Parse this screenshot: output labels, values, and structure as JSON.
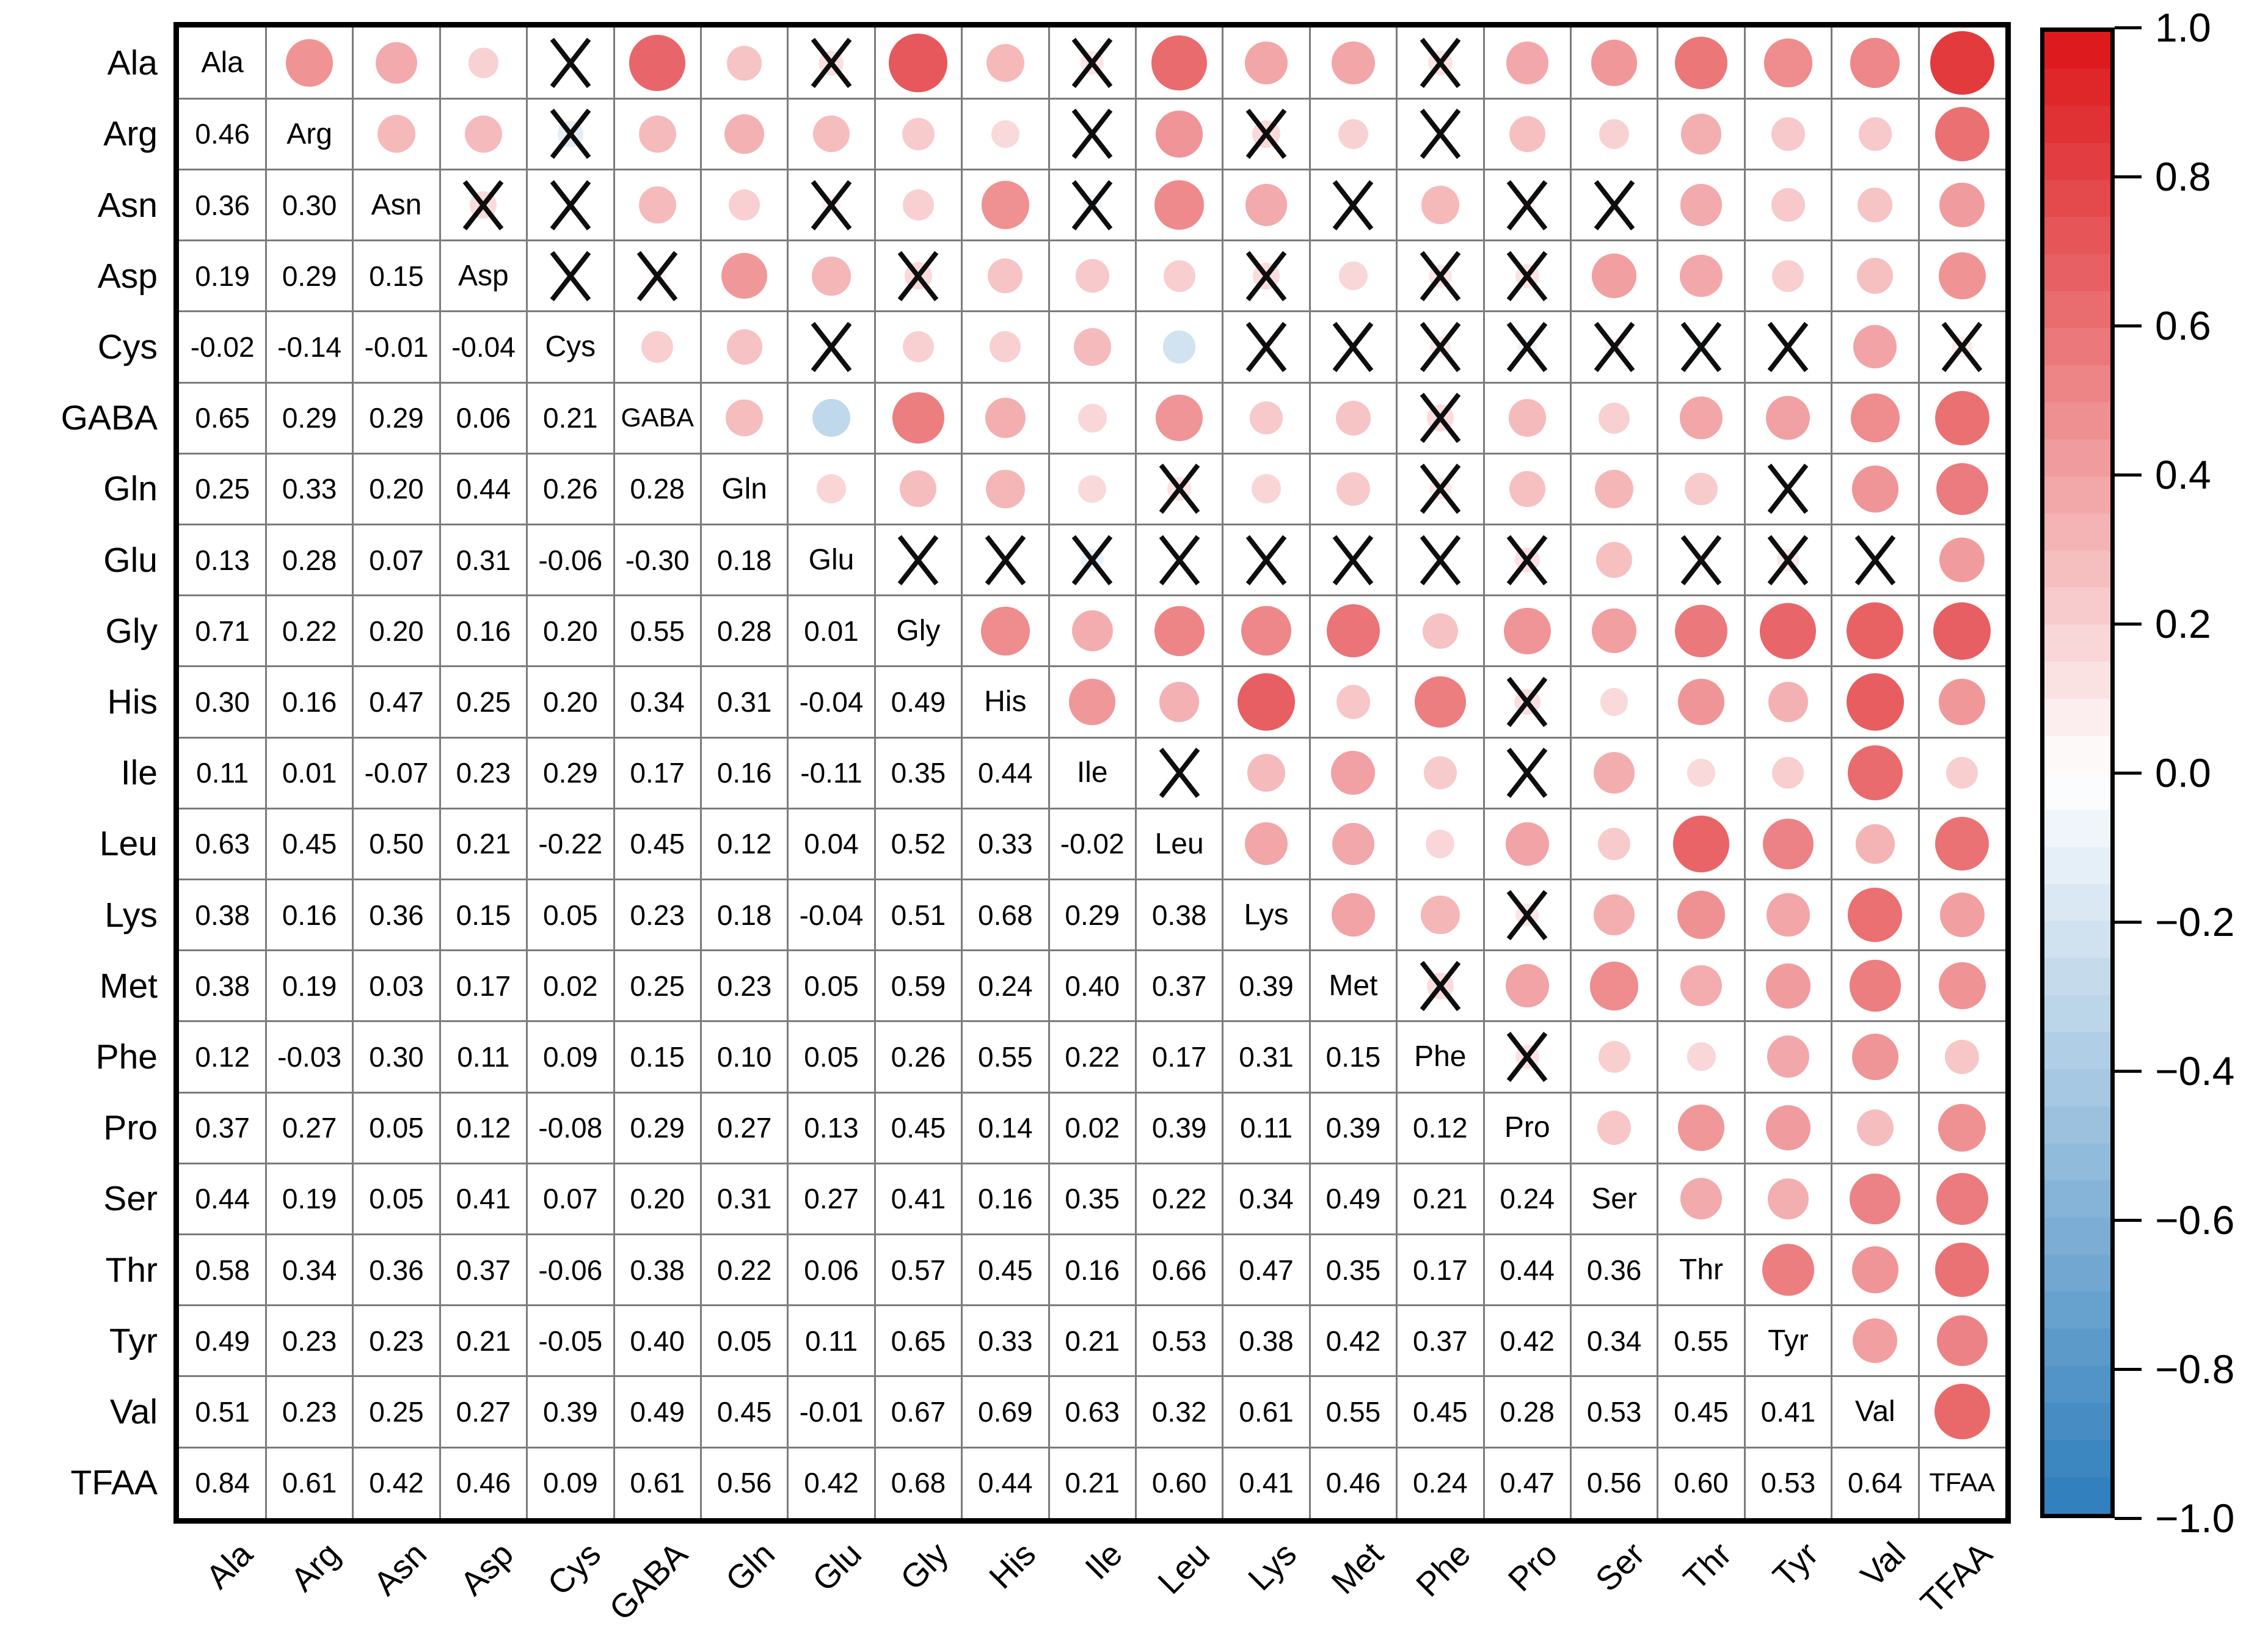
{
  "figure": {
    "background": "#ffffff"
  },
  "chart_data": {
    "type": "heatmap",
    "subtype": "correlation-matrix-corrplot",
    "title": "",
    "description": "21x21 amino-acid correlation matrix: lower triangle shows coefficients, diagonal shows variable names, upper triangle shows circles sized and colored by correlation, X marks flag non-significant correlations",
    "labels": [
      "Ala",
      "Arg",
      "Asn",
      "Asp",
      "Cys",
      "GABA",
      "Gln",
      "Glu",
      "Gly",
      "His",
      "Ile",
      "Leu",
      "Lys",
      "Met",
      "Phe",
      "Pro",
      "Ser",
      "Thr",
      "Tyr",
      "Val",
      "TFAA"
    ],
    "matrix_lower": [
      [],
      [
        0.46
      ],
      [
        0.36,
        0.3
      ],
      [
        0.19,
        0.29,
        0.15
      ],
      [
        -0.02,
        -0.14,
        -0.01,
        -0.04
      ],
      [
        0.65,
        0.29,
        0.29,
        0.06,
        0.21
      ],
      [
        0.25,
        0.33,
        0.2,
        0.44,
        0.26,
        0.28
      ],
      [
        0.13,
        0.28,
        0.07,
        0.31,
        -0.06,
        -0.3,
        0.18
      ],
      [
        0.71,
        0.22,
        0.2,
        0.16,
        0.2,
        0.55,
        0.28,
        0.01
      ],
      [
        0.3,
        0.16,
        0.47,
        0.25,
        0.2,
        0.34,
        0.31,
        -0.04,
        0.49
      ],
      [
        0.11,
        0.01,
        -0.07,
        0.23,
        0.29,
        0.17,
        0.16,
        -0.11,
        0.35,
        0.44
      ],
      [
        0.63,
        0.45,
        0.5,
        0.21,
        -0.22,
        0.45,
        0.12,
        0.04,
        0.52,
        0.33,
        -0.02
      ],
      [
        0.38,
        0.16,
        0.36,
        0.15,
        0.05,
        0.23,
        0.18,
        -0.04,
        0.51,
        0.68,
        0.29,
        0.38
      ],
      [
        0.38,
        0.19,
        0.03,
        0.17,
        0.02,
        0.25,
        0.23,
        0.05,
        0.59,
        0.24,
        0.4,
        0.37,
        0.39
      ],
      [
        0.12,
        -0.03,
        0.3,
        0.11,
        0.09,
        0.15,
        0.1,
        0.05,
        0.26,
        0.55,
        0.22,
        0.17,
        0.31,
        0.15
      ],
      [
        0.37,
        0.27,
        0.05,
        0.12,
        -0.08,
        0.29,
        0.27,
        0.13,
        0.45,
        0.14,
        0.02,
        0.39,
        0.11,
        0.39,
        0.12
      ],
      [
        0.44,
        0.19,
        0.05,
        0.41,
        0.07,
        0.2,
        0.31,
        0.27,
        0.41,
        0.16,
        0.35,
        0.22,
        0.34,
        0.49,
        0.21,
        0.24
      ],
      [
        0.58,
        0.34,
        0.36,
        0.37,
        -0.06,
        0.38,
        0.22,
        0.06,
        0.57,
        0.45,
        0.16,
        0.66,
        0.47,
        0.35,
        0.17,
        0.44,
        0.36
      ],
      [
        0.49,
        0.23,
        0.23,
        0.21,
        -0.05,
        0.4,
        0.05,
        0.11,
        0.65,
        0.33,
        0.21,
        0.53,
        0.38,
        0.42,
        0.37,
        0.42,
        0.34,
        0.55
      ],
      [
        0.51,
        0.23,
        0.25,
        0.27,
        0.39,
        0.49,
        0.45,
        -0.01,
        0.67,
        0.69,
        0.63,
        0.32,
        0.61,
        0.55,
        0.45,
        0.28,
        0.53,
        0.45,
        0.41
      ],
      [
        0.84,
        0.61,
        0.42,
        0.46,
        0.09,
        0.61,
        0.56,
        0.42,
        0.68,
        0.44,
        0.21,
        0.6,
        0.41,
        0.46,
        0.24,
        0.47,
        0.56,
        0.6,
        0.53,
        0.64
      ]
    ],
    "nonsignificant_pairs": [
      [
        "Ala",
        "Cys"
      ],
      [
        "Ala",
        "Glu"
      ],
      [
        "Ala",
        "Ile"
      ],
      [
        "Ala",
        "Phe"
      ],
      [
        "Arg",
        "Cys"
      ],
      [
        "Arg",
        "Ile"
      ],
      [
        "Arg",
        "Lys"
      ],
      [
        "Arg",
        "Phe"
      ],
      [
        "Asn",
        "Asp"
      ],
      [
        "Asn",
        "Cys"
      ],
      [
        "Asn",
        "Glu"
      ],
      [
        "Asn",
        "Ile"
      ],
      [
        "Asn",
        "Met"
      ],
      [
        "Asn",
        "Pro"
      ],
      [
        "Asn",
        "Ser"
      ],
      [
        "Asp",
        "Cys"
      ],
      [
        "Asp",
        "GABA"
      ],
      [
        "Asp",
        "Gly"
      ],
      [
        "Asp",
        "Lys"
      ],
      [
        "Asp",
        "Phe"
      ],
      [
        "Asp",
        "Pro"
      ],
      [
        "Cys",
        "Glu"
      ],
      [
        "Cys",
        "Lys"
      ],
      [
        "Cys",
        "Met"
      ],
      [
        "Cys",
        "Phe"
      ],
      [
        "Cys",
        "Pro"
      ],
      [
        "Cys",
        "Ser"
      ],
      [
        "Cys",
        "Thr"
      ],
      [
        "Cys",
        "Tyr"
      ],
      [
        "Cys",
        "TFAA"
      ],
      [
        "GABA",
        "Phe"
      ],
      [
        "Gln",
        "Leu"
      ],
      [
        "Gln",
        "Phe"
      ],
      [
        "Gln",
        "Tyr"
      ],
      [
        "Glu",
        "Gly"
      ],
      [
        "Glu",
        "His"
      ],
      [
        "Glu",
        "Ile"
      ],
      [
        "Glu",
        "Leu"
      ],
      [
        "Glu",
        "Lys"
      ],
      [
        "Glu",
        "Met"
      ],
      [
        "Glu",
        "Phe"
      ],
      [
        "Glu",
        "Pro"
      ],
      [
        "Glu",
        "Thr"
      ],
      [
        "Glu",
        "Tyr"
      ],
      [
        "Glu",
        "Val"
      ],
      [
        "His",
        "Pro"
      ],
      [
        "Ile",
        "Leu"
      ],
      [
        "Ile",
        "Pro"
      ],
      [
        "Lys",
        "Pro"
      ],
      [
        "Met",
        "Phe"
      ],
      [
        "Phe",
        "Pro"
      ]
    ],
    "significance_marker": "X",
    "colorbar": {
      "min": -1.0,
      "max": 1.0,
      "tick_labels": [
        "1.0",
        "0.8",
        "0.6",
        "0.4",
        "0.2",
        "0.0",
        "−0.2",
        "−0.4",
        "−0.6",
        "−0.8",
        "−1.0"
      ],
      "positive_end_color": "#dc1418",
      "zero_color": "#ffffff",
      "negative_end_color": "#2d7dbb",
      "position": "right",
      "bands": 40
    },
    "grid": {
      "line_color": "#7b7b7b",
      "frame_color": "#000000"
    },
    "axis": {
      "bottom_labels_rotation_deg": -45,
      "left_labels": "horizontal"
    }
  }
}
